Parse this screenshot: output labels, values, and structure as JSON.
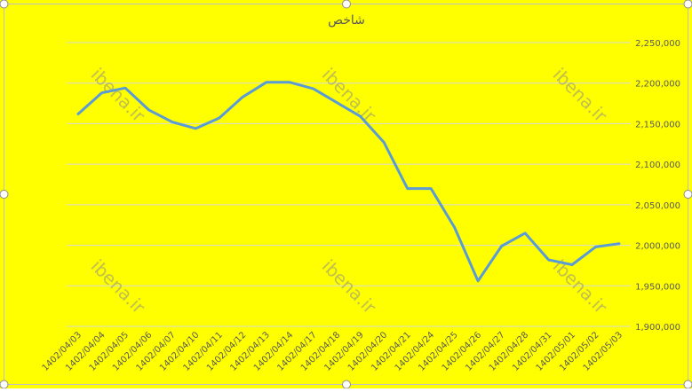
{
  "colors": {
    "background": "#ffff00",
    "line": "#5b9bd5",
    "gridline": "#d9d9d9",
    "frame": "#bfbfbf",
    "text": "#595959",
    "watermark": "#8c8c8c"
  },
  "watermark_text": "ibena.ir",
  "chart_data": {
    "type": "line",
    "title": "شاخص",
    "xlabel": "",
    "ylabel": "",
    "y_axis_position": "right",
    "grid": true,
    "ylim": [
      1900000,
      2250000
    ],
    "y_ticks": [
      1900000,
      1950000,
      2000000,
      2050000,
      2100000,
      2150000,
      2200000,
      2250000
    ],
    "y_tick_labels": [
      "1,900,000",
      "1,950,000",
      "2,000,000",
      "2,050,000",
      "2,100,000",
      "2,150,000",
      "2,200,000",
      "2,250,000"
    ],
    "categories": [
      "1402/04/03",
      "1402/04/04",
      "1402/04/05",
      "1402/04/06",
      "1402/04/07",
      "1402/04/10",
      "1402/04/11",
      "1402/04/12",
      "1402/04/13",
      "1402/04/14",
      "1402/04/17",
      "1402/04/18",
      "1402/04/19",
      "1402/04/20",
      "1402/04/21",
      "1402/04/24",
      "1402/04/25",
      "1402/04/26",
      "1402/04/27",
      "1402/04/28",
      "1402/04/31",
      "1402/05/01",
      "1402/05/02",
      "1402/05/03"
    ],
    "series": [
      {
        "values": [
          2162000,
          2188000,
          2194000,
          2167000,
          2152000,
          2144000,
          2157000,
          2183000,
          2201000,
          2201000,
          2193000,
          2176000,
          2159000,
          2127000,
          2070000,
          2070000,
          2022000,
          1956000,
          1999000,
          2015000,
          1982000,
          1976000,
          1998000,
          2002000
        ]
      }
    ]
  }
}
